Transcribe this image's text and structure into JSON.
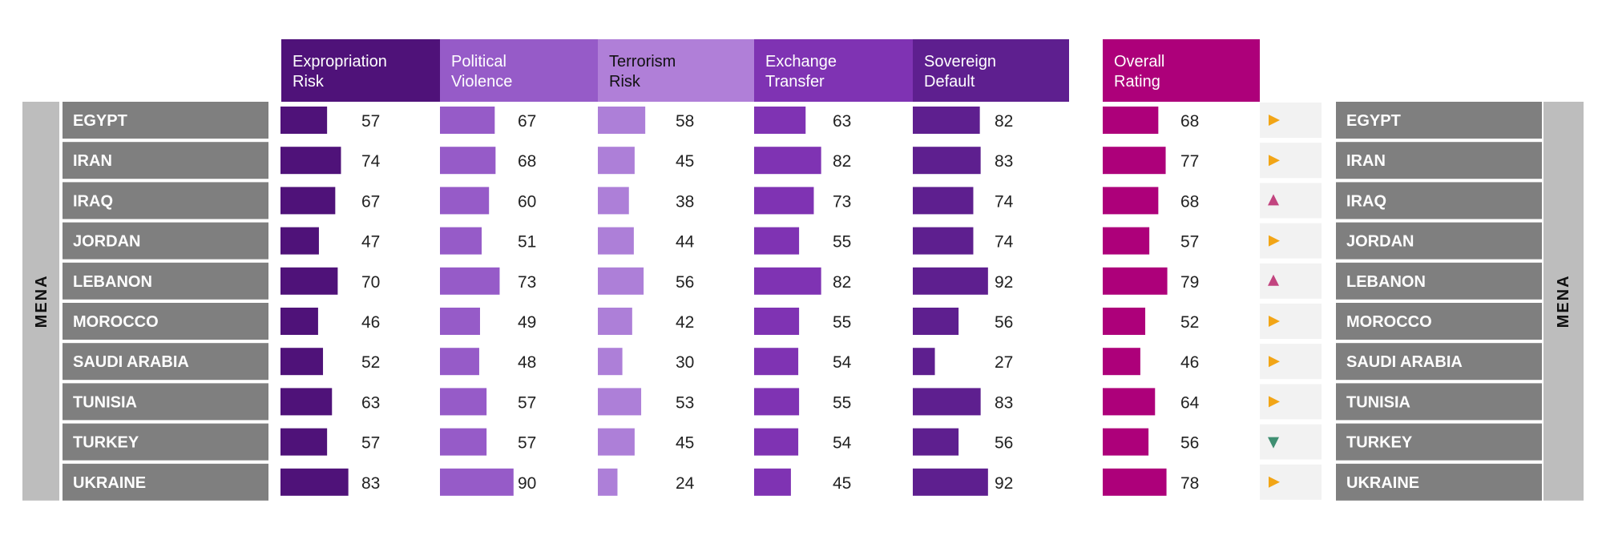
{
  "chart_data": {
    "type": "bar",
    "region": "MENA",
    "categories": [
      "EGYPT",
      "IRAN",
      "IRAQ",
      "JORDAN",
      "LEBANON",
      "MOROCCO",
      "SAUDI ARABIA",
      "TUNISIA",
      "TURKEY",
      "UKRAINE"
    ],
    "series": [
      {
        "name": "Expropriation Risk",
        "header_lines": [
          "Expropriation",
          "Risk"
        ],
        "color": "#4f1279",
        "header_color": "#4f1279",
        "values": [
          57,
          74,
          67,
          47,
          70,
          46,
          52,
          63,
          57,
          83
        ]
      },
      {
        "name": "Political Violence",
        "header_lines": [
          "Political",
          "Violence"
        ],
        "color": "#965bc8",
        "header_color": "#965bc8",
        "values": [
          67,
          68,
          60,
          51,
          73,
          49,
          48,
          57,
          57,
          90
        ]
      },
      {
        "name": "Terrorism Risk",
        "header_lines": [
          "Terrorism",
          "Risk"
        ],
        "color": "#ad7fd8",
        "header_color": "#b07fd8",
        "values": [
          58,
          45,
          38,
          44,
          56,
          42,
          30,
          53,
          45,
          24
        ]
      },
      {
        "name": "Exchange Transfer",
        "header_lines": [
          "Exchange",
          "Transfer"
        ],
        "color": "#7f33b3",
        "header_color": "#7f33b3",
        "values": [
          63,
          82,
          73,
          55,
          82,
          55,
          54,
          55,
          54,
          45
        ]
      },
      {
        "name": "Sovereign Default",
        "header_lines": [
          "Sovereign",
          "Default"
        ],
        "color": "#5e1f8f",
        "header_color": "#5e1f8f",
        "values": [
          82,
          83,
          74,
          74,
          92,
          56,
          27,
          83,
          56,
          92
        ]
      },
      {
        "name": "Overall Rating",
        "header_lines": [
          "Overall",
          "Rating"
        ],
        "color": "#ad007a",
        "header_color": "#ad007a",
        "values": [
          68,
          77,
          68,
          57,
          79,
          52,
          46,
          64,
          56,
          78
        ]
      }
    ],
    "trend": [
      "right",
      "right",
      "up",
      "right",
      "up",
      "right",
      "right",
      "right",
      "down",
      "right"
    ],
    "trend_colors": {
      "right": "#f2a516",
      "up": "#c2447f",
      "down": "#3f8f72"
    },
    "xlim": [
      0,
      100
    ]
  }
}
